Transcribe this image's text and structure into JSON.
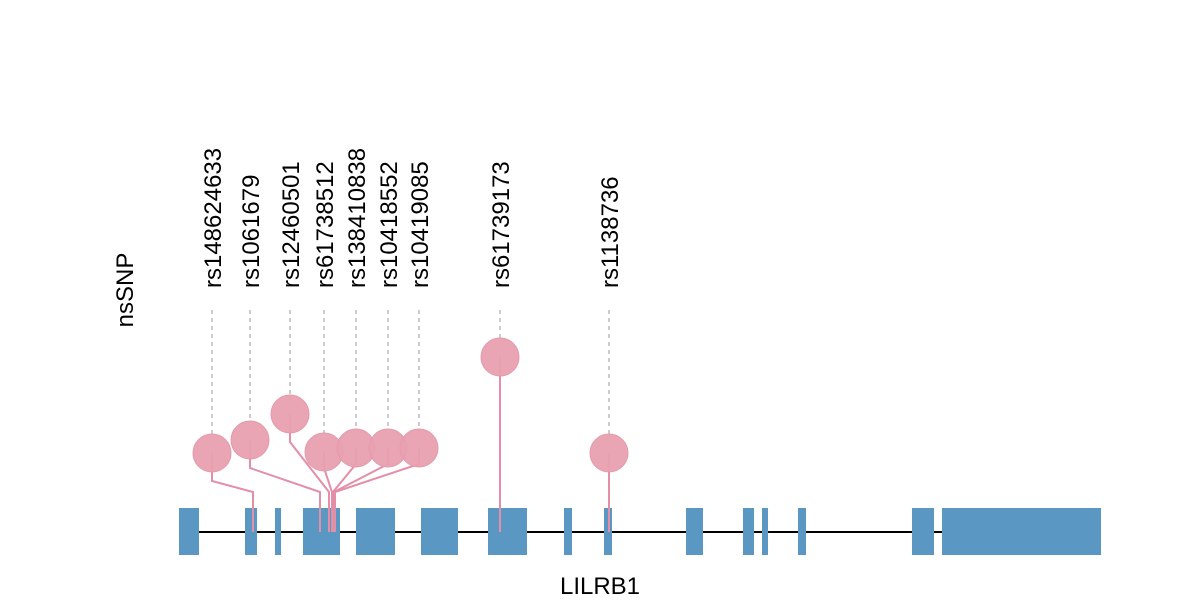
{
  "chart_data": {
    "type": "lollipop",
    "ylabel": "nsSNP",
    "xlabel": "LILRB1",
    "snps": [
      {
        "label": "rs148624633"
      },
      {
        "label": "rs1061679"
      },
      {
        "label": "rs12460501"
      },
      {
        "label": "rs61738512"
      },
      {
        "label": "rs138410838"
      },
      {
        "label": "rs10418552"
      },
      {
        "label": "rs10419085"
      },
      {
        "label": "rs61739173"
      },
      {
        "label": "rs1138736"
      }
    ],
    "exon_count": 16,
    "grid": false
  },
  "colors": {
    "exon": "#5b97c3",
    "lollipop": "#e8a0b0",
    "stem": "#e38fa8",
    "guide": "#bbbbbb",
    "backbone": "#000000"
  }
}
